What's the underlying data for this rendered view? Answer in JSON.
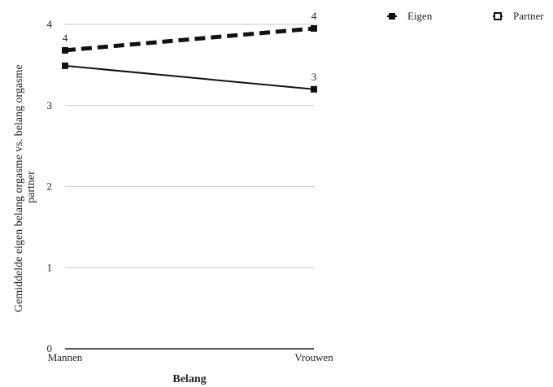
{
  "chart_data": {
    "type": "line",
    "title": "",
    "xlabel": "Belang",
    "ylabel_lines": [
      "Gemiddelde eigen belang orgasme vs. belang orgasme",
      "partner"
    ],
    "categories": [
      "Mannen",
      "Vrouwen"
    ],
    "ylim": [
      0,
      4
    ],
    "yticks": [
      "0",
      "1",
      "2",
      "3",
      "4"
    ],
    "grid": true,
    "legend_position": "top-right",
    "series": [
      {
        "name": "Eigen",
        "values": [
          3.49,
          3.2
        ],
        "line_style": "solid",
        "marker": "filled-square",
        "color": "#111111",
        "data_labels": [
          "",
          "3"
        ]
      },
      {
        "name": "Partner",
        "values": [
          3.68,
          3.95
        ],
        "line_style": "dashed",
        "marker": "open-square",
        "color": "#111111",
        "data_labels": [
          "4",
          "4"
        ]
      }
    ]
  }
}
